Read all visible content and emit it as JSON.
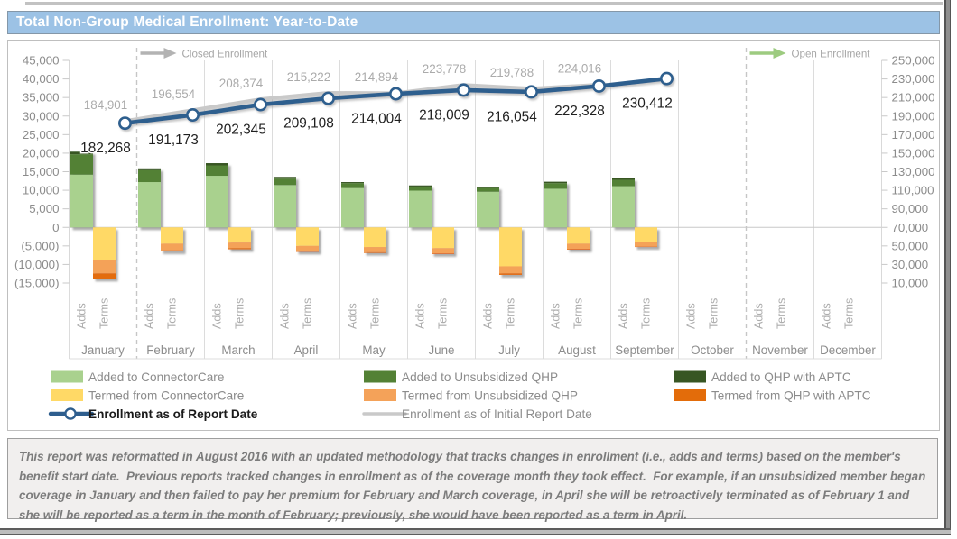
{
  "report": {
    "title": "Total Non-Group Medical Enrollment: Year-to-Date"
  },
  "chart_data": {
    "type": "combo-stacked-bar-line",
    "title": "Total Non-Group Medical Enrollment: Year-to-Date",
    "categories": [
      "January",
      "February",
      "March",
      "April",
      "May",
      "June",
      "July",
      "August",
      "September",
      "October",
      "November",
      "December"
    ],
    "sub_categories": [
      "Adds",
      "Terms"
    ],
    "left_axis": {
      "min": -15000,
      "max": 45000,
      "step": 5000
    },
    "right_axis": {
      "min": 10000,
      "max": 250000,
      "step": 20000
    },
    "grid": {
      "month_separators": true,
      "zero_line": true,
      "dashed_boundaries_after": [
        "January",
        "October"
      ]
    },
    "annotations": [
      {
        "label": "Closed Enrollment",
        "after_month_index": 1,
        "color": "#b3b3b3",
        "text_color": "#a6a6a6"
      },
      {
        "label": "Open Enrollment",
        "after_month_index": 10,
        "color": "#9dcb80",
        "text_color": "#a6a6a6"
      }
    ],
    "bar_series": [
      {
        "name": "Added to ConnectorCare",
        "stack": "Adds",
        "color": "#A9D18E",
        "values": [
          14200,
          12200,
          13900,
          11400,
          10600,
          9900,
          9600,
          10400,
          11100,
          null,
          null,
          null
        ]
      },
      {
        "name": "Added to Unsubsidized QHP",
        "stack": "Adds",
        "color": "#538135",
        "values": [
          5500,
          3200,
          2800,
          1700,
          1300,
          1100,
          1000,
          1500,
          1700,
          null,
          null,
          null
        ]
      },
      {
        "name": "Added to QHP with APTC",
        "stack": "Adds",
        "color": "#375623",
        "values": [
          700,
          500,
          600,
          500,
          300,
          300,
          300,
          400,
          400,
          null,
          null,
          null
        ]
      },
      {
        "name": "Termed from ConnectorCare",
        "stack": "Terms",
        "color": "#FFD966",
        "values": [
          -8750,
          -4400,
          -4100,
          -5000,
          -5300,
          -5600,
          -10500,
          -4400,
          -3900,
          null,
          null,
          null
        ]
      },
      {
        "name": "Termed from Unsubsidized QHP",
        "stack": "Terms",
        "color": "#F4A259",
        "values": [
          -3650,
          -1800,
          -1500,
          -1400,
          -1400,
          -1400,
          -1900,
          -1400,
          -1300,
          null,
          null,
          null
        ]
      },
      {
        "name": "Termed from QHP with APTC",
        "stack": "Terms",
        "color": "#E36C0A",
        "values": [
          -1450,
          -300,
          -300,
          -200,
          -200,
          -200,
          -400,
          -200,
          -100,
          null,
          null,
          null
        ]
      }
    ],
    "line_series": [
      {
        "name": "Enrollment as of Initial Report Date",
        "axis": "right",
        "color": "#C9C9C9",
        "marker": false,
        "label_color": "#ABABAB",
        "label_position": "above",
        "values": [
          184901,
          196554,
          208374,
          215222,
          214894,
          223778,
          219788,
          224016,
          null,
          null,
          null,
          null
        ]
      },
      {
        "name": "Enrollment as of Report Date",
        "axis": "right",
        "color": "#2E5E8E",
        "marker": true,
        "label_color": "#1f1f1f",
        "label_position": "below",
        "values": [
          182268,
          191173,
          202345,
          209108,
          214004,
          218009,
          216054,
          222328,
          230412,
          null,
          null,
          null
        ]
      }
    ]
  },
  "legend": {
    "items": [
      {
        "label": "Added to ConnectorCare",
        "swatch": "rect",
        "color": "#A9D18E",
        "row": 0,
        "col": 0
      },
      {
        "label": "Added to Unsubsidized QHP",
        "swatch": "rect",
        "color": "#538135",
        "row": 0,
        "col": 1
      },
      {
        "label": "Added to QHP with APTC",
        "swatch": "rect",
        "color": "#375623",
        "row": 0,
        "col": 2
      },
      {
        "label": "Termed from ConnectorCare",
        "swatch": "rect",
        "color": "#FFD966",
        "row": 1,
        "col": 0
      },
      {
        "label": "Termed from Unsubsidized QHP",
        "swatch": "rect",
        "color": "#F4A259",
        "row": 1,
        "col": 1
      },
      {
        "label": "Termed from QHP with APTC",
        "swatch": "rect",
        "color": "#E36C0A",
        "row": 1,
        "col": 2
      },
      {
        "label": "Enrollment as of Report Date",
        "swatch": "line-marker",
        "color": "#2E5E8E",
        "row": 2,
        "col": 0,
        "text_color": "#1a1a1a",
        "bold": true
      },
      {
        "label": "Enrollment as of Initial Report Date",
        "swatch": "line",
        "color": "#C9C9C9",
        "row": 2,
        "col": 1
      }
    ]
  },
  "footnote": {
    "text": "This report was reformatted in August 2016 with an updated methodology that tracks changes in enrollment (i.e., adds and terms) based on the member's benefit start date.  Previous reports tracked changes in enrollment as of the coverage month they took effect.  For example, if an unsubsidized member began coverage in January and then failed to pay her premium for February and March coverage, in April she will be retroactively terminated as of February 1 and she will be reported as a term in the month of February; previously, she would have been reported as a term in April."
  }
}
